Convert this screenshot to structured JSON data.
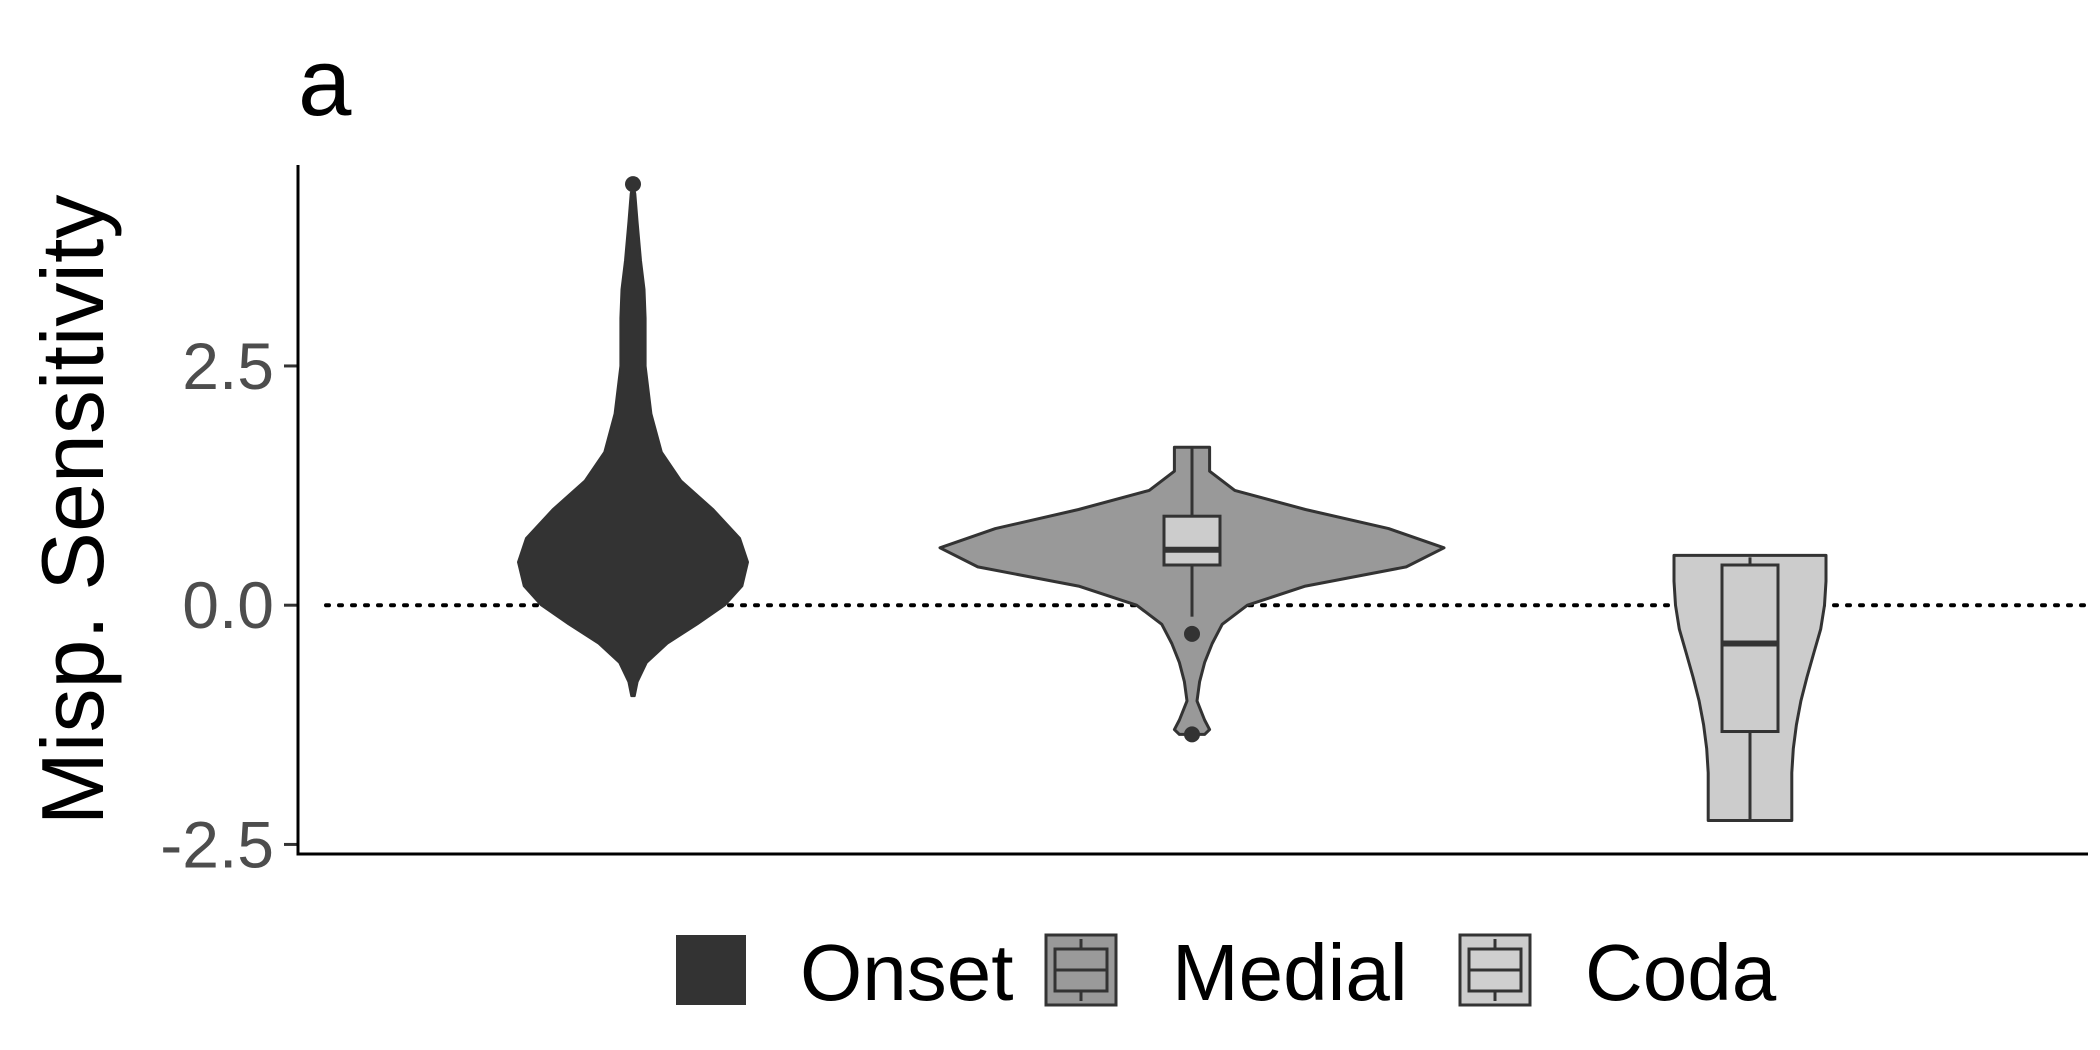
{
  "chart_data": {
    "type": "violin",
    "panel_tag": "a",
    "ylabel": "Misp. Sensitivity",
    "xlabel": "",
    "ylim": [
      -2.6,
      4.6
    ],
    "yticks": [
      2.5,
      0.0,
      -2.5
    ],
    "ytick_labels": [
      "2.5",
      "0.0",
      "-2.5"
    ],
    "reference_line": {
      "y": 0,
      "style": "dotted"
    },
    "legend_position": "bottom",
    "series": [
      {
        "name": "Onset",
        "fill": "#333333",
        "min": -0.95,
        "max": 4.4,
        "density": [
          [
            -0.95,
            0.015
          ],
          [
            -0.8,
            0.04
          ],
          [
            -0.6,
            0.12
          ],
          [
            -0.4,
            0.3
          ],
          [
            -0.2,
            0.56
          ],
          [
            0.0,
            0.8
          ],
          [
            0.2,
            0.95
          ],
          [
            0.45,
            1.0
          ],
          [
            0.7,
            0.93
          ],
          [
            1.0,
            0.7
          ],
          [
            1.3,
            0.42
          ],
          [
            1.6,
            0.25
          ],
          [
            2.0,
            0.16
          ],
          [
            2.5,
            0.11
          ],
          [
            3.0,
            0.11
          ],
          [
            3.3,
            0.1
          ],
          [
            3.6,
            0.07
          ],
          [
            4.0,
            0.04
          ],
          [
            4.3,
            0.02
          ],
          [
            4.4,
            0.0
          ]
        ],
        "outliers": [
          4.4
        ]
      },
      {
        "name": "Medial",
        "fill": "#999999",
        "min": -1.35,
        "max": 1.65,
        "density": [
          [
            -1.35,
            0.05
          ],
          [
            -1.3,
            0.07
          ],
          [
            -1.2,
            0.05
          ],
          [
            -1.0,
            0.02
          ],
          [
            -0.8,
            0.03
          ],
          [
            -0.6,
            0.05
          ],
          [
            -0.4,
            0.08
          ],
          [
            -0.2,
            0.12
          ],
          [
            0.0,
            0.22
          ],
          [
            0.2,
            0.45
          ],
          [
            0.4,
            0.85
          ],
          [
            0.6,
            1.0
          ],
          [
            0.8,
            0.78
          ],
          [
            1.0,
            0.45
          ],
          [
            1.2,
            0.17
          ],
          [
            1.4,
            0.07
          ],
          [
            1.6,
            0.07
          ],
          [
            1.65,
            0.07
          ]
        ],
        "box": {
          "q1": 0.42,
          "median": 0.58,
          "q3": 0.93,
          "whisker_low": -0.12,
          "whisker_high": 1.65
        },
        "outliers": [
          -0.3,
          -1.35
        ]
      },
      {
        "name": "Coda",
        "fill": "#cccccc",
        "min": -2.25,
        "max": 0.52,
        "density": [
          [
            -2.25,
            0.55
          ],
          [
            -2.0,
            0.55
          ],
          [
            -1.75,
            0.55
          ],
          [
            -1.5,
            0.57
          ],
          [
            -1.25,
            0.61
          ],
          [
            -1.0,
            0.67
          ],
          [
            -0.75,
            0.75
          ],
          [
            -0.5,
            0.84
          ],
          [
            -0.25,
            0.93
          ],
          [
            0.0,
            0.98
          ],
          [
            0.25,
            1.0
          ],
          [
            0.52,
            1.0
          ]
        ],
        "box": {
          "q1": -1.32,
          "median": -0.4,
          "q3": 0.42,
          "whisker_low": -2.25,
          "whisker_high": 0.5
        },
        "outliers": []
      }
    ]
  }
}
